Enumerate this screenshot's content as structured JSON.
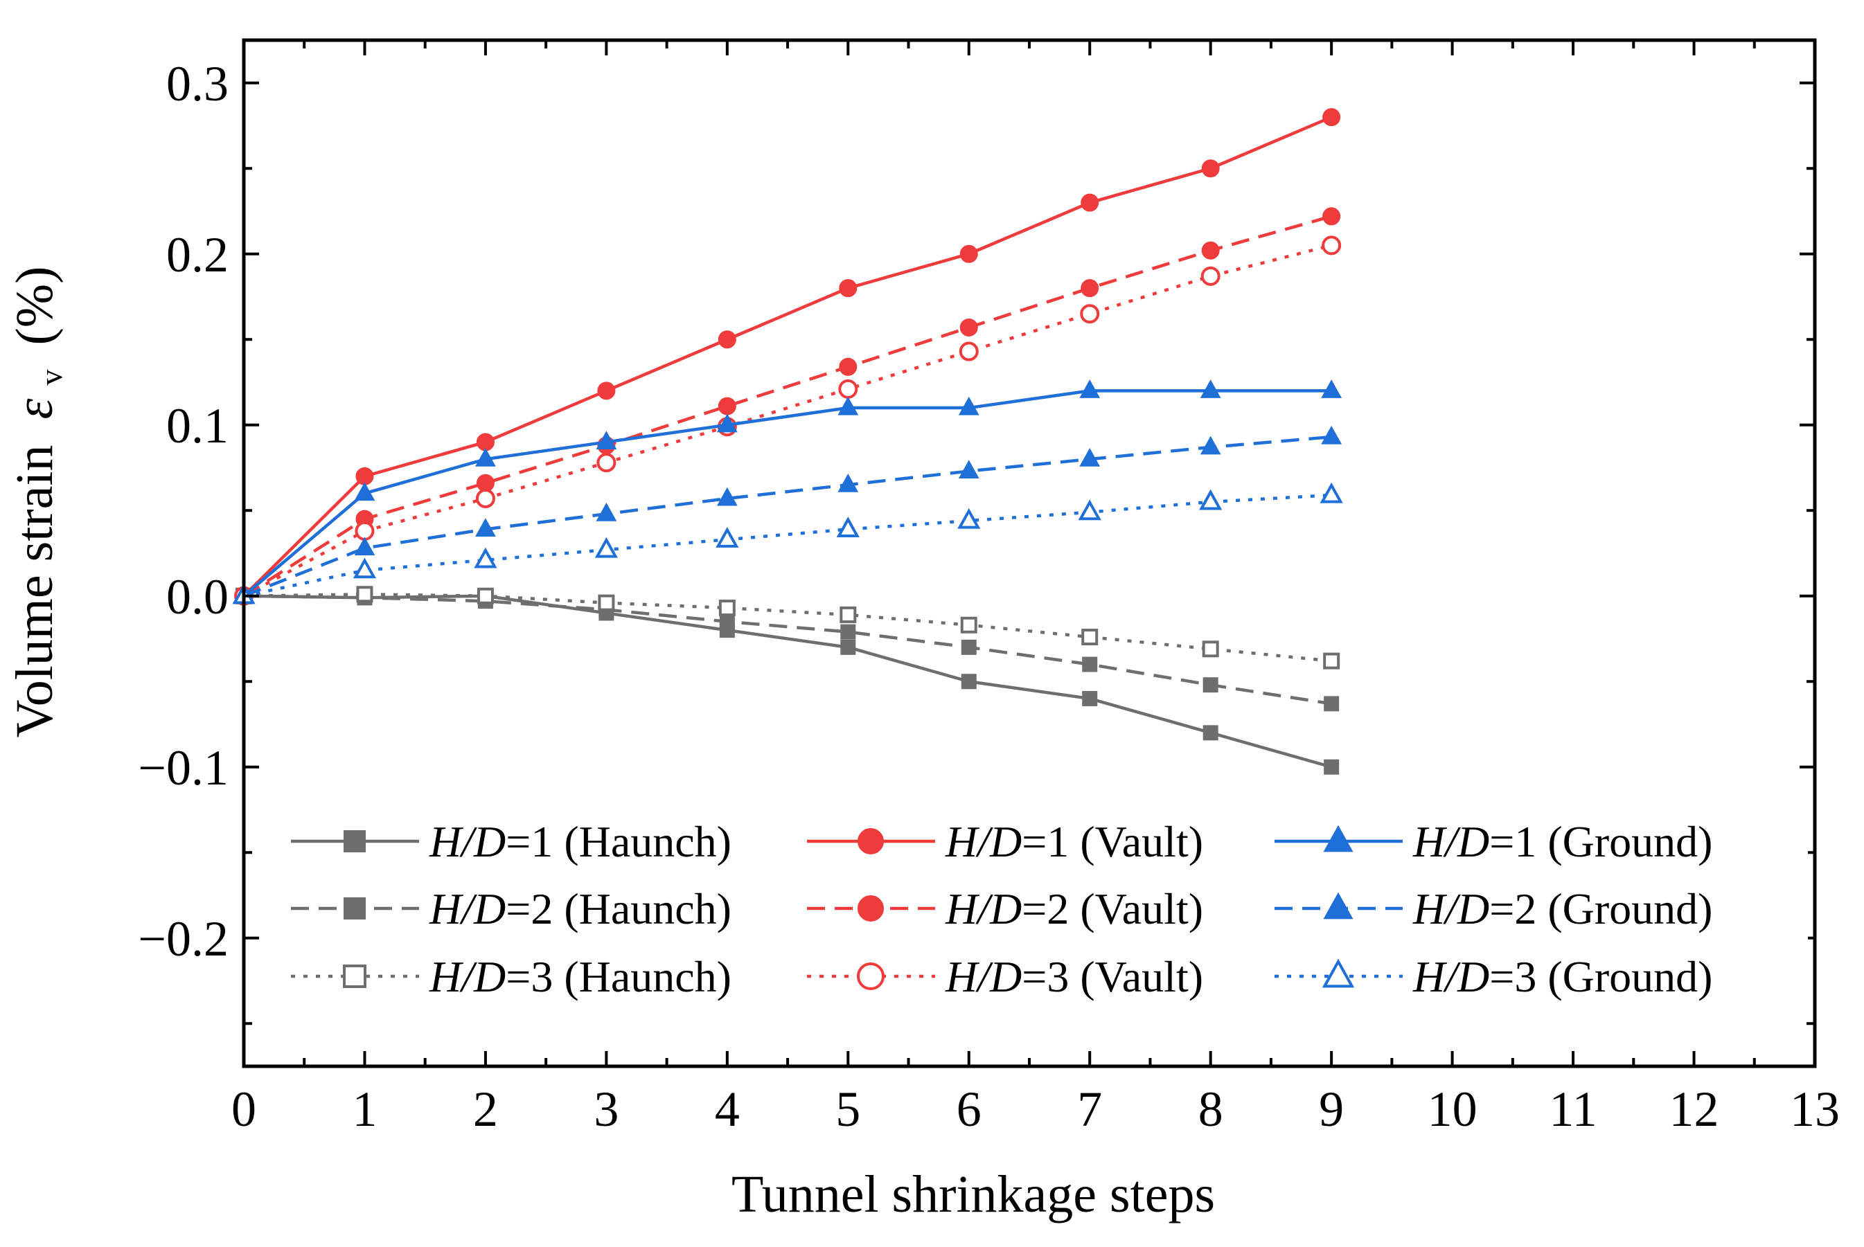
{
  "chart_data": {
    "type": "line",
    "xlabel": "Tunnel shrinkage steps",
    "ylabel": "Volume strain",
    "ylabel_symbol": "ε",
    "ylabel_subscript": "v",
    "ylabel_unit": "(%)",
    "xlim": [
      0,
      13
    ],
    "ylim": [
      -0.275,
      0.325
    ],
    "x_ticks": [
      0,
      1,
      2,
      3,
      4,
      5,
      6,
      7,
      8,
      9,
      10,
      11,
      12,
      13
    ],
    "x_tick_labels": [
      "0",
      "1",
      "2",
      "3",
      "4",
      "5",
      "6",
      "7",
      "8",
      "9",
      "10",
      "11",
      "12",
      "13"
    ],
    "y_ticks": [
      -0.2,
      -0.1,
      0.0,
      0.1,
      0.2,
      0.3
    ],
    "y_tick_labels": [
      "−0.2",
      "−0.1",
      "0.0",
      "0.1",
      "0.2",
      "0.3"
    ],
    "grid": false,
    "legend_position": "bottom",
    "x": [
      0,
      1,
      2,
      3,
      4,
      5,
      6,
      7,
      8,
      9
    ],
    "series": [
      {
        "name": "H/D=1 (Haunch)",
        "italic": "H/D",
        "rest": "=1 (Haunch)",
        "color": "#6e6e6e",
        "dash": "solid",
        "marker": "square",
        "filled": true,
        "values": [
          0,
          -0.001,
          0.0,
          -0.01,
          -0.02,
          -0.03,
          -0.05,
          -0.06,
          -0.08,
          -0.1
        ]
      },
      {
        "name": "H/D=2 (Haunch)",
        "italic": "H/D",
        "rest": "=2 (Haunch)",
        "color": "#6e6e6e",
        "dash": "dashed",
        "marker": "square",
        "filled": true,
        "values": [
          0,
          -0.001,
          -0.003,
          -0.008,
          -0.015,
          -0.021,
          -0.03,
          -0.04,
          -0.052,
          -0.063
        ]
      },
      {
        "name": "H/D=3 (Haunch)",
        "italic": "H/D",
        "rest": "=3 (Haunch)",
        "color": "#6e6e6e",
        "dash": "dotted",
        "marker": "square",
        "filled": false,
        "values": [
          0,
          0.001,
          0.0,
          -0.004,
          -0.007,
          -0.011,
          -0.017,
          -0.024,
          -0.031,
          -0.038
        ]
      },
      {
        "name": "H/D=1 (Vault)",
        "italic": "H/D",
        "rest": "=1 (Vault)",
        "color": "#ef3b3b",
        "dash": "solid",
        "marker": "circle",
        "filled": true,
        "values": [
          0,
          0.07,
          0.09,
          0.12,
          0.15,
          0.18,
          0.2,
          0.23,
          0.25,
          0.28
        ]
      },
      {
        "name": "H/D=2 (Vault)",
        "italic": "H/D",
        "rest": "=2 (Vault)",
        "color": "#ef3b3b",
        "dash": "dashed",
        "marker": "circle",
        "filled": true,
        "values": [
          0,
          0.045,
          0.066,
          0.088,
          0.111,
          0.134,
          0.157,
          0.18,
          0.202,
          0.222
        ]
      },
      {
        "name": "H/D=3 (Vault)",
        "italic": "H/D",
        "rest": "=3 (Vault)",
        "color": "#ef3b3b",
        "dash": "dotted",
        "marker": "circle",
        "filled": false,
        "values": [
          0,
          0.038,
          0.057,
          0.078,
          0.099,
          0.121,
          0.143,
          0.165,
          0.187,
          0.205
        ]
      },
      {
        "name": "H/D=1 (Ground)",
        "italic": "H/D",
        "rest": "=1 (Ground)",
        "color": "#1f6fd8",
        "dash": "solid",
        "marker": "triangle",
        "filled": true,
        "values": [
          0,
          0.06,
          0.08,
          0.09,
          0.1,
          0.11,
          0.11,
          0.12,
          0.12,
          0.12
        ]
      },
      {
        "name": "H/D=2 (Ground)",
        "italic": "H/D",
        "rest": "=2 (Ground)",
        "color": "#1f6fd8",
        "dash": "dashed",
        "marker": "triangle",
        "filled": true,
        "values": [
          0,
          0.028,
          0.039,
          0.048,
          0.057,
          0.065,
          0.073,
          0.08,
          0.087,
          0.093
        ]
      },
      {
        "name": "H/D=3 (Ground)",
        "italic": "H/D",
        "rest": "=3 (Ground)",
        "color": "#1f6fd8",
        "dash": "dotted",
        "marker": "triangle",
        "filled": false,
        "values": [
          0,
          0.015,
          0.021,
          0.027,
          0.033,
          0.039,
          0.044,
          0.049,
          0.055,
          0.059
        ]
      }
    ]
  }
}
